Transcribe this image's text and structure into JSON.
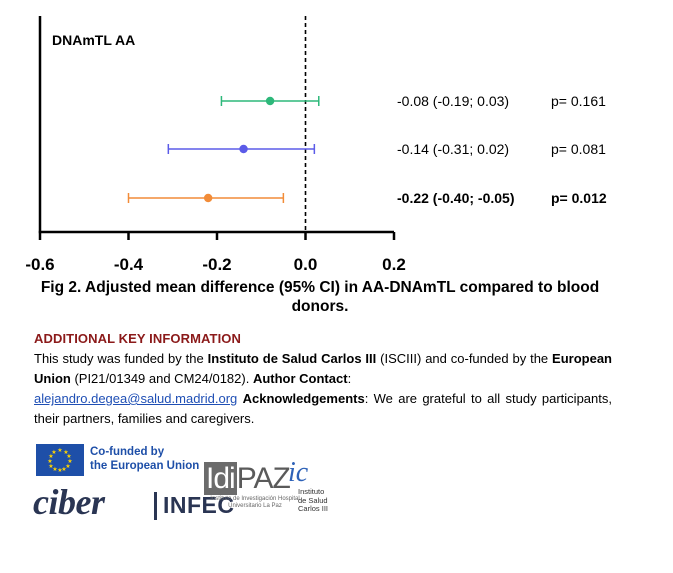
{
  "chart_data": {
    "type": "forest",
    "panel_label": "DNAmTL AA",
    "xlim": [
      -0.6,
      0.2
    ],
    "x_ticks": [
      "-0.6",
      "-0.4",
      "-0.2",
      "0.0",
      "0.2"
    ],
    "reference_line": 0,
    "series": [
      {
        "estimate": -0.08,
        "ci_low": -0.19,
        "ci_high": 0.03,
        "color": "#2db87a",
        "label_ci": "-0.08 (-0.19; 0.03)",
        "label_p": "p= 0.161",
        "bold": false
      },
      {
        "estimate": -0.14,
        "ci_low": -0.31,
        "ci_high": 0.02,
        "color": "#5b5be8",
        "label_ci": "-0.14 (-0.31; 0.02)",
        "label_p": "p= 0.081",
        "bold": false
      },
      {
        "estimate": -0.22,
        "ci_low": -0.4,
        "ci_high": -0.05,
        "color": "#f28c38",
        "label_ci": "-0.22 (-0.40; -0.05)",
        "label_p": "p= 0.012",
        "bold": true
      }
    ]
  },
  "caption": "Fig 2. Adjusted mean difference (95% CI) in AA-DNAmTL compared to blood donors.",
  "additional_info": {
    "heading": "ADDITIONAL KEY INFORMATION",
    "t1": "This study was funded by the ",
    "t2": "Instituto de Salud Carlos III",
    "t3": " (ISCIII) and co-funded by the ",
    "t4": "European Union",
    "t5": " (PI21/01349 and CM24/0182). ",
    "t6": "Author Contact",
    "t7": ": ",
    "email": "alejandro.degea@salud.madrid.org",
    "t8": " ",
    "t9": "Acknowledgements",
    "t10": ": We are grateful to all study participants, their partners, families and caregivers."
  },
  "logos": {
    "eu_line1": "Co-funded by",
    "eu_line2": "the European Union",
    "ciber": "ciber",
    "infec": "INFEC",
    "idipaz_a": "Idi",
    "idipaz_b": "PAZ",
    "idipaz_sub": "Instituto de Investigación Hospital Universitario La Paz",
    "isciii_mark": "ic",
    "isciii_l1": "Instituto",
    "isciii_l2": "de Salud",
    "isciii_l3": "Carlos III"
  }
}
